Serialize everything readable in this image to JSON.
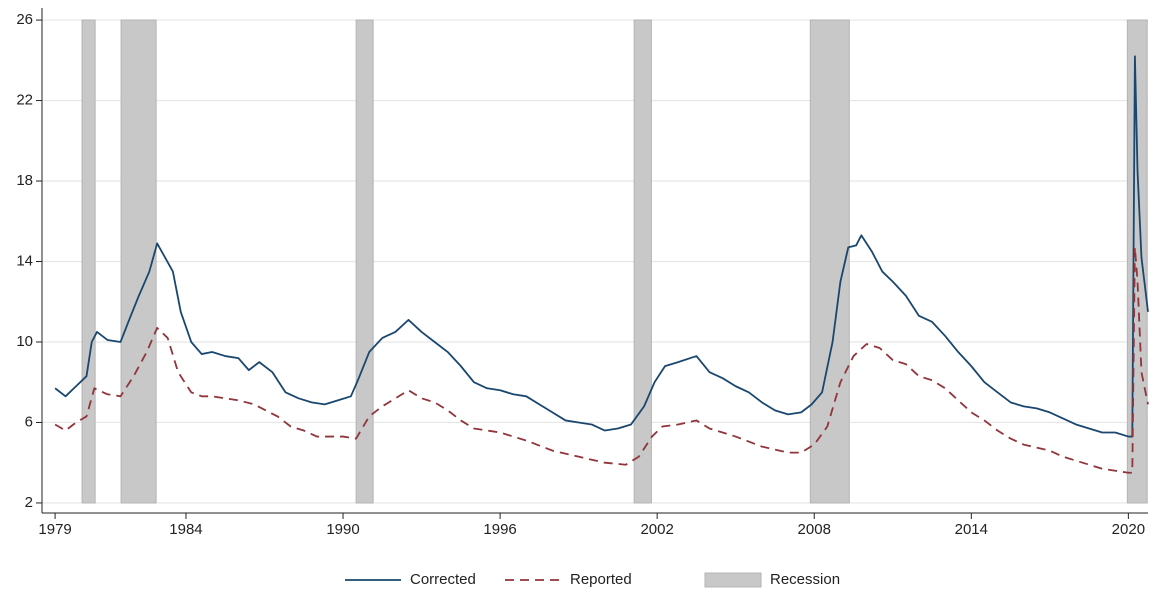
{
  "chart_data": {
    "type": "line",
    "xlim": [
      1978.5,
      2020.75
    ],
    "ylim": [
      1.5,
      26.6
    ],
    "xticks": [
      1979,
      1984,
      1990,
      1996,
      2002,
      2008,
      2014,
      2020
    ],
    "yticks": [
      2,
      6,
      10,
      14,
      18,
      22,
      26
    ],
    "grid": true,
    "legend": "bottom",
    "recession": {
      "name": "Recession",
      "color": "#c8c8c8",
      "spans": [
        [
          1980.03,
          1980.53
        ],
        [
          1981.52,
          1982.86
        ],
        [
          1990.5,
          1991.15
        ],
        [
          2001.12,
          2001.78
        ],
        [
          2007.85,
          2009.34
        ],
        [
          2019.96,
          2020.72
        ]
      ]
    },
    "series": [
      {
        "name": "Corrected",
        "color": "#1a476f",
        "dash": false,
        "x": [
          1979.0,
          1979.4,
          1979.8,
          1980.2,
          1980.4,
          1980.6,
          1981.0,
          1981.5,
          1981.8,
          1982.2,
          1982.6,
          1982.9,
          1983.2,
          1983.5,
          1983.8,
          1984.2,
          1984.6,
          1985.0,
          1985.5,
          1986.0,
          1986.4,
          1986.8,
          1987.3,
          1987.8,
          1988.3,
          1988.8,
          1989.3,
          1989.8,
          1990.3,
          1990.6,
          1991.0,
          1991.5,
          1992.0,
          1992.5,
          1993.0,
          1993.5,
          1994.0,
          1994.5,
          1995.0,
          1995.5,
          1996.0,
          1996.5,
          1997.0,
          1997.5,
          1998.0,
          1998.5,
          1999.0,
          1999.5,
          2000.0,
          2000.5,
          2001.0,
          2001.5,
          2001.9,
          2002.3,
          2002.8,
          2003.5,
          2004.0,
          2004.5,
          2005.0,
          2005.5,
          2006.0,
          2006.5,
          2007.0,
          2007.5,
          2007.9,
          2008.3,
          2008.7,
          2009.0,
          2009.3,
          2009.6,
          2009.8,
          2010.2,
          2010.6,
          2011.0,
          2011.5,
          2012.0,
          2012.5,
          2013.0,
          2013.5,
          2014.0,
          2014.5,
          2015.0,
          2015.5,
          2016.0,
          2016.5,
          2017.0,
          2017.5,
          2018.0,
          2018.5,
          2019.0,
          2019.5,
          2020.0,
          2020.15,
          2020.25,
          2020.35,
          2020.5,
          2020.75
        ],
        "values": [
          7.7,
          7.3,
          7.8,
          8.3,
          10.0,
          10.5,
          10.1,
          10.0,
          11.0,
          12.3,
          13.5,
          14.9,
          14.2,
          13.5,
          11.5,
          10.0,
          9.4,
          9.5,
          9.3,
          9.2,
          8.6,
          9.0,
          8.5,
          7.5,
          7.2,
          7.0,
          6.9,
          7.1,
          7.3,
          8.2,
          9.5,
          10.2,
          10.5,
          11.1,
          10.5,
          10.0,
          9.5,
          8.8,
          8.0,
          7.7,
          7.6,
          7.4,
          7.3,
          6.9,
          6.5,
          6.1,
          6.0,
          5.9,
          5.6,
          5.7,
          5.9,
          6.8,
          8.0,
          8.8,
          9.0,
          9.3,
          8.5,
          8.2,
          7.8,
          7.5,
          7.0,
          6.6,
          6.4,
          6.5,
          6.9,
          7.5,
          10.0,
          13.0,
          14.7,
          14.8,
          15.3,
          14.5,
          13.5,
          13.0,
          12.3,
          11.3,
          11.0,
          10.3,
          9.5,
          8.8,
          8.0,
          7.5,
          7.0,
          6.8,
          6.7,
          6.5,
          6.2,
          5.9,
          5.7,
          5.5,
          5.5,
          5.3,
          5.3,
          24.2,
          18.5,
          14.2,
          11.5
        ]
      },
      {
        "name": "Reported",
        "color": "#90353b",
        "dash": true,
        "x": [
          1979.0,
          1979.4,
          1979.8,
          1980.2,
          1980.5,
          1981.0,
          1981.5,
          1982.0,
          1982.5,
          1982.9,
          1983.3,
          1983.7,
          1984.2,
          1984.6,
          1985.0,
          1986.0,
          1986.6,
          1987.5,
          1988.0,
          1988.5,
          1989.0,
          1990.0,
          1990.5,
          1991.0,
          1991.5,
          1992.0,
          1992.5,
          1993.0,
          1993.5,
          1994.0,
          1994.5,
          1995.0,
          1996.0,
          1997.0,
          1998.0,
          1999.0,
          2000.0,
          2000.8,
          2001.3,
          2001.8,
          2002.2,
          2002.8,
          2003.5,
          2004.0,
          2005.0,
          2006.0,
          2007.0,
          2007.5,
          2008.0,
          2008.5,
          2009.0,
          2009.5,
          2010.0,
          2010.5,
          2011.0,
          2011.5,
          2012.0,
          2012.5,
          2013.0,
          2014.0,
          2014.5,
          2015.0,
          2015.5,
          2016.0,
          2017.0,
          2017.5,
          2018.0,
          2018.5,
          2019.0,
          2019.5,
          2020.0,
          2020.15,
          2020.25,
          2020.35,
          2020.5,
          2020.75
        ],
        "values": [
          5.9,
          5.6,
          6.0,
          6.3,
          7.7,
          7.4,
          7.3,
          8.3,
          9.5,
          10.7,
          10.2,
          8.5,
          7.5,
          7.3,
          7.3,
          7.1,
          6.9,
          6.3,
          5.8,
          5.6,
          5.3,
          5.3,
          5.2,
          6.3,
          6.8,
          7.2,
          7.6,
          7.2,
          7.0,
          6.6,
          6.1,
          5.7,
          5.5,
          5.1,
          4.6,
          4.3,
          4.0,
          3.9,
          4.3,
          5.3,
          5.8,
          5.9,
          6.1,
          5.7,
          5.3,
          4.8,
          4.5,
          4.5,
          4.9,
          5.8,
          8.0,
          9.3,
          9.9,
          9.7,
          9.1,
          8.9,
          8.3,
          8.1,
          7.7,
          6.5,
          6.1,
          5.6,
          5.2,
          4.9,
          4.6,
          4.3,
          4.1,
          3.9,
          3.7,
          3.6,
          3.5,
          3.5,
          14.7,
          13.0,
          8.5,
          6.9
        ]
      }
    ]
  }
}
